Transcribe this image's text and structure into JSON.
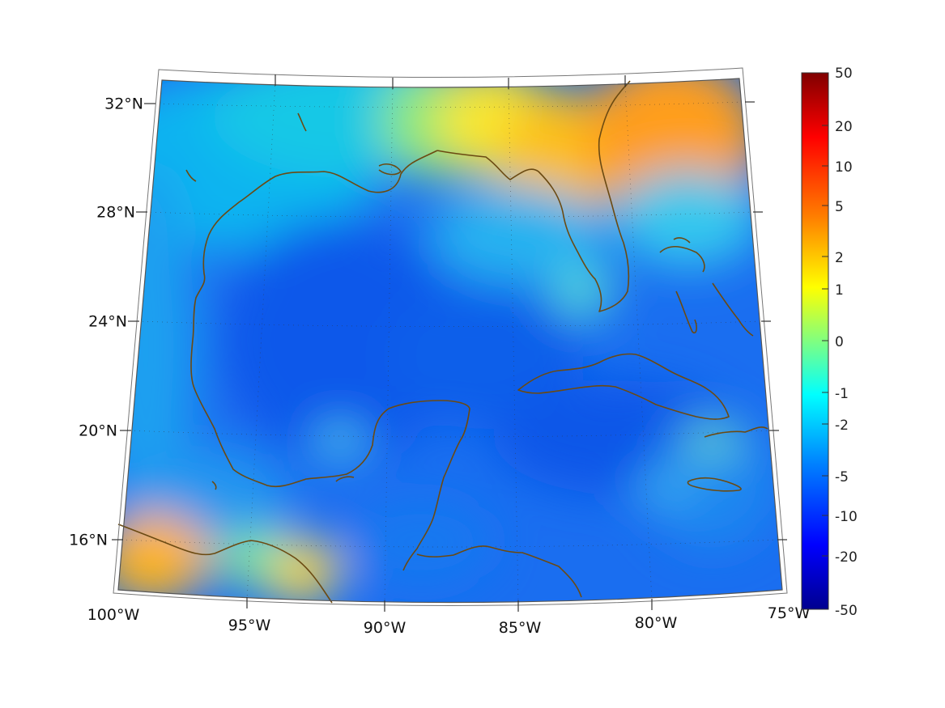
{
  "map": {
    "lat_labels": [
      "32°N",
      "28°N",
      "24°N",
      "20°N",
      "16°N"
    ],
    "lon_labels": [
      "100°W",
      "95°W",
      "90°W",
      "85°W",
      "80°W",
      "75°W"
    ],
    "coastline_color": "#6b4a12",
    "extent": {
      "lon": [
        -100,
        -75
      ],
      "lat": [
        14.5,
        33
      ]
    },
    "projection": "conic"
  },
  "colorbar": {
    "tick_labels": [
      "50",
      "20",
      "10",
      "5",
      "2",
      "1",
      "0",
      "-1",
      "-2",
      "-5",
      "-10",
      "-20",
      "-50"
    ],
    "colors": [
      "#800000",
      "#ff0000",
      "#ff8000",
      "#ffff00",
      "#80ff80",
      "#00ffff",
      "#0080ff",
      "#0000ff",
      "#00008f"
    ],
    "scale": "symmetric-log"
  }
}
